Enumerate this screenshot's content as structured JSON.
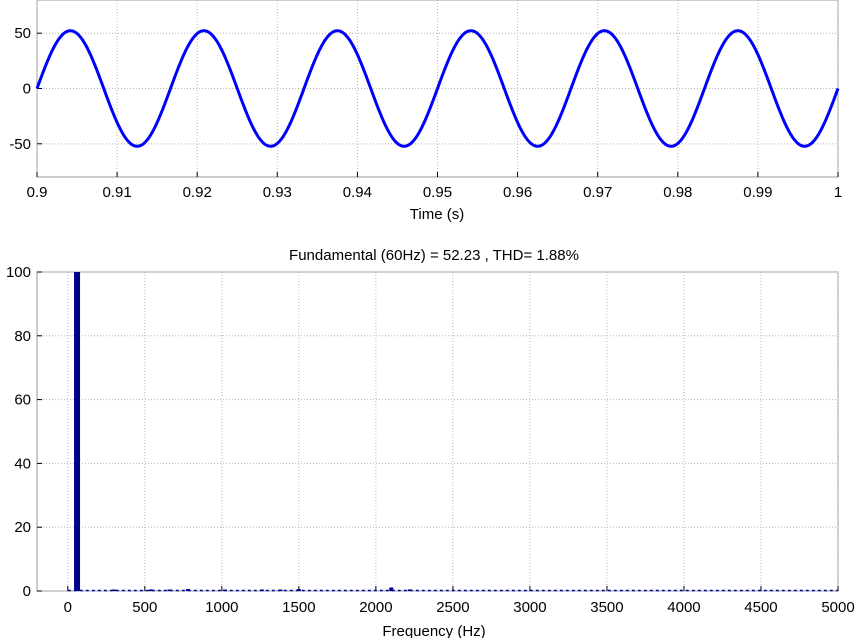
{
  "chart_data": [
    {
      "type": "line",
      "xlabel": "Time (s)",
      "ylabel": "",
      "xlim": [
        0.9,
        1.0
      ],
      "ylim": [
        -80,
        80
      ],
      "x_ticks": [
        "0.9",
        "0.91",
        "0.92",
        "0.93",
        "0.94",
        "0.95",
        "0.96",
        "0.97",
        "0.98",
        "0.99",
        "1"
      ],
      "y_ticks": [
        "-50",
        "0",
        "50"
      ],
      "grid": true,
      "color": "#0000ff",
      "series": [
        {
          "amplitude": 52.23,
          "frequency_hz": 60,
          "x_start": 0.9,
          "x_end": 1.0
        }
      ]
    },
    {
      "type": "bar",
      "title": "Fundamental (60Hz) = 52.23 , THD= 1.88%",
      "xlabel": "Frequency (Hz)",
      "ylabel": "",
      "xlim": [
        -200,
        5000
      ],
      "ylim": [
        0,
        100
      ],
      "x_ticks": [
        "0",
        "500",
        "1000",
        "1500",
        "2000",
        "2500",
        "3000",
        "3500",
        "4000",
        "4500",
        "5000"
      ],
      "y_ticks": [
        "0",
        "20",
        "40",
        "60",
        "80",
        "100"
      ],
      "grid": true,
      "color": "#00008b",
      "harmonics": [
        {
          "x": 60,
          "y": 100
        },
        {
          "x": 300,
          "y": 0.4
        },
        {
          "x": 540,
          "y": 0.5
        },
        {
          "x": 660,
          "y": 0.4
        },
        {
          "x": 780,
          "y": 0.6
        },
        {
          "x": 1020,
          "y": 0.4
        },
        {
          "x": 1260,
          "y": 0.3
        },
        {
          "x": 1380,
          "y": 0.3
        },
        {
          "x": 1500,
          "y": 0.6
        },
        {
          "x": 2100,
          "y": 1.1
        },
        {
          "x": 2220,
          "y": 0.5
        }
      ]
    }
  ]
}
